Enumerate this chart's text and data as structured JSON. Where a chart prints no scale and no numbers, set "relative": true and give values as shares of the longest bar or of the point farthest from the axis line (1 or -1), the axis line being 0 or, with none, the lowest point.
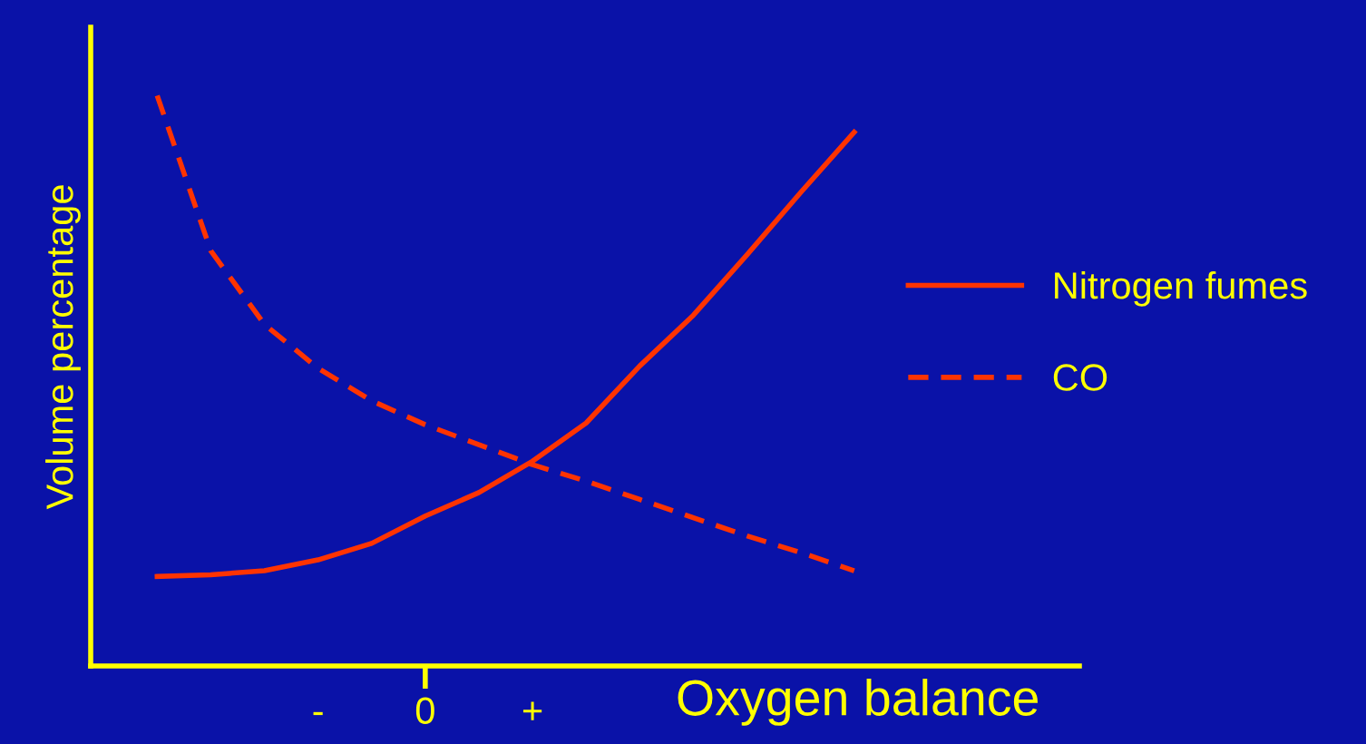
{
  "chart_data": {
    "type": "line",
    "relative": true,
    "xlabel": "Oxygen balance",
    "ylabel": "Volume percentage",
    "categories": [
      null,
      null,
      null,
      "-",
      null,
      "0",
      null,
      "+",
      null,
      null,
      null,
      null,
      null,
      null
    ],
    "series": [
      {
        "name": "Nitrogen fumes",
        "color": "#ff3300",
        "line_style": "solid",
        "values": [
          0.157,
          0.16,
          0.167,
          0.186,
          0.215,
          0.263,
          0.304,
          0.359,
          0.426,
          0.526,
          0.615,
          0.721,
          0.83,
          0.936
        ]
      },
      {
        "name": "CO",
        "color": "#ff3300",
        "line_style": "dashed",
        "values": [
          1.0,
          0.728,
          0.599,
          0.522,
          0.465,
          0.423,
          0.388,
          0.353,
          0.324,
          0.292,
          0.26,
          0.228,
          0.199,
          0.167
        ]
      }
    ],
    "grid": false,
    "legend": "right",
    "marker": "none"
  }
}
